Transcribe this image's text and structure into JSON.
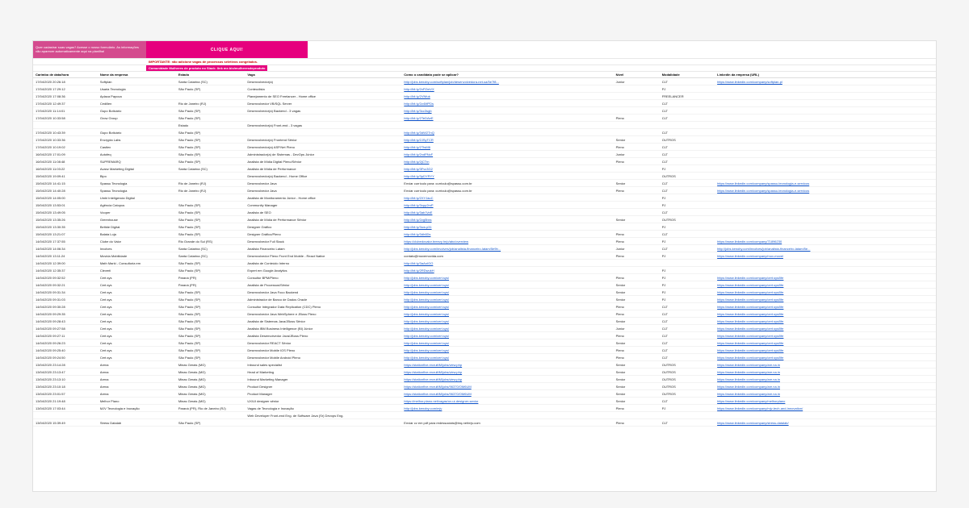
{
  "banner": {
    "left_text": "Quer cadastrar suas vagas? Acesse o nosso formulário. As informações vão aparecer automaticamente aqui na planilha!",
    "cta": "CLIQUE AQUI!",
    "warning": "IMPORTANTE: não adicione vagas de processos seletivos congelados.",
    "community": "Comunidade Mulheres de produto no Slack: link me.bio/mulheresdeproduto"
  },
  "headers": {
    "date": "Carimbo de data/hora",
    "company": "Nome da empresa",
    "state": "Estado",
    "role": "Vaga",
    "apply": "Como o candidato pode se aplicar?",
    "level": "Nível",
    "modality": "Modalidade",
    "linkedin": "Linkedin da empresa (URL)"
  },
  "rows": [
    {
      "d": "17/04/2020 20:26:18",
      "c": "Softplan",
      "s": "Santa Catarina (SC)",
      "r": "Desenvolvedor(a)",
      "a": "http://jobs.kenoby.com/softplan/job/desenvolvedora-net-sa/5e7f8...",
      "n": "Junior",
      "m": "CLT",
      "l": "https://www.linkedin.com/company/softplan-pl"
    },
    {
      "d": "17/04/2020 17:29:12",
      "c": "Usaria Tecnologia",
      "s": "São Paulo (SP)",
      "r": "Conteudista",
      "a": "http://bit.ly/2xPZmVX",
      "n": "",
      "m": "PJ",
      "l": ""
    },
    {
      "d": "17/04/2020 17:08:36",
      "c": "Aplaca Papoca",
      "s": "",
      "r": "Planejamento de SEO Freelancer - Home office",
      "a": "http://bit.ly/2VNfuk",
      "n": "",
      "m": "FREELANCER",
      "l": ""
    },
    {
      "d": "17/04/2020 12:49:37",
      "c": "Cedillen",
      "s": "Rio de Janeiro (RJ)",
      "r": "Desenvolvedor VB/SQL Server",
      "a": "http://bit.ly/2z4MPDs",
      "n": "",
      "m": "CLT",
      "l": ""
    },
    {
      "d": "17/04/2020 11:14:01",
      "c": "Gupo Boticário",
      "s": "São Paulo (SP)",
      "r": "Desenvolvedor(a) Backend - 3 vagas",
      "a": "http://bit.ly/3cc3sgb",
      "n": "",
      "m": "CLT",
      "l": ""
    },
    {
      "d": "17/04/2020 10:33:58",
      "c": "Grow Group",
      "s": "São Paulo (SP)",
      "r": "",
      "a": "http://bit.ly/2TeDAeE",
      "n": "Pleno",
      "m": "CLT",
      "l": ""
    },
    {
      "d": "",
      "c": "",
      "s": "Estado",
      "r": "Desenvolvedor(a) Front-end - 3 vagas",
      "a": "",
      "n": "",
      "m": "",
      "l": ""
    },
    {
      "d": "17/04/2020 10:43:39",
      "c": "Gupo Boticário",
      "s": "São Paulo (SP)",
      "r": "",
      "a": "http://bit.ly/3dW2TnQ",
      "n": "",
      "m": "CLT",
      "l": ""
    },
    {
      "d": "17/04/2020 10:33:36",
      "c": "Encrypta Labs",
      "s": "São Paulo (SP)",
      "r": "Desenvolvedor(a) Frontend Sênior",
      "a": "http://bit.ly/2JSyTCR",
      "n": "Senior",
      "m": "OUTROS",
      "l": ""
    },
    {
      "d": "17/04/2020 10:19:02",
      "c": "Castlex",
      "s": "São Paulo (SP)",
      "r": "Desenvolvedor(a) ASP.Net Pleno",
      "a": "http://bit.ly/2TtsM6",
      "n": "Pleno",
      "m": "CLT",
      "l": ""
    },
    {
      "d": "16/04/2020 17:01:09",
      "c": "Autofeq",
      "s": "São Paulo (SP)",
      "r": "Administrador(a) de Sistemas - DevOps Júnior",
      "a": "http://bit.ly/2xdPNcF",
      "n": "Junior",
      "m": "CLT",
      "l": ""
    },
    {
      "d": "16/04/2020 11:08:48",
      "c": "SUPREMARQ",
      "s": "São Paulo (SP)",
      "r": "Analista de Mídia Digital Pleno/Sênior",
      "a": "http://bit.ly/2jCTrn",
      "n": "Pleno",
      "m": "CLT",
      "l": ""
    },
    {
      "d": "16/04/2020 11:03:22",
      "c": "Avanz Marketing Digital",
      "s": "Santa Catarina (SC)",
      "r": "Analista de Mídia de Performance",
      "a": "http://bit.ly/3Fvc3G2",
      "n": "",
      "m": "PJ",
      "l": ""
    },
    {
      "d": "15/04/2020 19:09:41",
      "c": "Bipo",
      "s": "",
      "r": "Desenvolvedor(a) Backend - Home Office",
      "a": "http://bit.ly/3pDYRYY",
      "n": "",
      "m": "OUTROS",
      "l": ""
    },
    {
      "d": "15/04/2020 14:41:15",
      "c": "Spassu Tecnologia",
      "s": "Rio de Janeiro (RJ)",
      "r": "Desenvolvedor Java",
      "a": "Enviar currículo para: curriculo@spassu.com.br",
      "n": "Senior",
      "m": "CLT",
      "l": "https://www.linkedin.com/company/spassu-tecnologia-e-servicos"
    },
    {
      "d": "15/04/2020 14:40:28",
      "c": "Spassu Tecnologia",
      "s": "Rio de Janeiro (RJ)",
      "r": "Desenvolvedor Java",
      "a": "Enviar currículo para: curriculo@spassu.com.br",
      "n": "Pleno",
      "m": "CLT",
      "l": "https://www.linkedin.com/company/spassu-tecnologia-e-servicos"
    },
    {
      "d": "15/04/2020 14:05:00",
      "c": "Umbi Inteligencia Digital",
      "s": "",
      "r": "Analista de Monitoramento Júnior - Home office",
      "a": "http://bit.ly/2XYJauC",
      "n": "",
      "m": "PJ",
      "l": ""
    },
    {
      "d": "15/04/2020 13:53:01",
      "c": "Agência Catopus",
      "s": "São Paulo (SP)",
      "r": "Community Manager",
      "a": "http://bit.ly/3xpp2mP",
      "n": "",
      "m": "PJ",
      "l": ""
    },
    {
      "d": "15/04/2020 13:49:05",
      "c": "Vooper",
      "s": "São Paulo (SP)",
      "r": "Analista de SEO",
      "a": "http://bit.ly/3ab7vbE",
      "n": "",
      "m": "CLT",
      "l": ""
    },
    {
      "d": "15/04/2020 13:35:26",
      "c": "Greenhouse",
      "s": "São Paulo (SP)",
      "r": "Analista de Mídia de Performance Sênior",
      "a": "http://bit.ly/2zg5bxs",
      "n": "Senior",
      "m": "OUTROS",
      "l": ""
    },
    {
      "d": "15/04/2020 13:30:35",
      "c": "Beltide Digital",
      "s": "São Paulo (SP)",
      "r": "Designer Gráfico",
      "a": "http://bit.ly/3uw.p31",
      "n": "",
      "m": "PJ",
      "l": ""
    },
    {
      "d": "15/04/2020 13:21:07",
      "c": "Balata Loja",
      "s": "São Paulo (SP)",
      "r": "Designer Gráfico/Pleno",
      "a": "http://bit.ly/3dh6Ds",
      "n": "Pleno",
      "m": "CLT",
      "l": ""
    },
    {
      "d": "14/04/2020 17:37:55",
      "c": "Clube do Valor",
      "s": "Rio Grande do Sul (RS)",
      "r": "Desenvolvedor Full Stack",
      "a": "https://clubedovalor.breezy.hr/p/abc/overview",
      "n": "Pleno",
      "m": "PJ",
      "l": "https://www.linkedin.com/company/71896230"
    },
    {
      "d": "14/04/2020 14:06:34",
      "c": "Involves",
      "s": "Santa Catarina (SC)",
      "r": "Analista Financeiro Latam",
      "a": "http://jobs.kenoby.com/involves/job/analista-financeiro-latam/5e9b...",
      "n": "Junior",
      "m": "CLT",
      "l": "http://jobs.kenoby.com/involves/job/analista-financeiro-latam/5e..."
    },
    {
      "d": "14/04/2020 13:11:24",
      "c": "Movida Mobilidade",
      "s": "Santa Catarina (SC)",
      "r": "Desenvolvedor Pleno Front End Mobile - React Native",
      "a": "contato@movemovida.com",
      "n": "Pleno",
      "m": "PJ",
      "l": "https://www.linkedin.com/company/mov-movel"
    },
    {
      "d": "14/04/2020 12:39:00",
      "c": "Math Marki - Consultoria em",
      "s": "São Paulo (SP)",
      "r": "Analista de Conteúdo Interno",
      "a": "http://bit.ly/3aAoIGO",
      "n": "",
      "m": "",
      "l": ""
    },
    {
      "d": "14/04/2020 12:35:37",
      "c": "Cleverii",
      "s": "São Paulo (SP)",
      "r": "Expert em Google Analytics",
      "a": "http://bit.ly/2RDwukH",
      "n": "",
      "m": "PJ",
      "l": ""
    },
    {
      "d": "14/04/2020 09:32:52",
      "c": "Cert.sys",
      "s": "Paraná (PR)",
      "r": "Consultor BPM/Pleno",
      "a": "http://jobs.kenoby.com/cert.sys/",
      "n": "Pleno",
      "m": "PJ",
      "l": "https://www.linkedin.com/company/cert.sys/life"
    },
    {
      "d": "14/04/2020 09:32:21",
      "c": "Cert.sys",
      "s": "Paraná (PR)",
      "r": "Analista de Processos/Sênior",
      "a": "http://jobs.kenoby.com/cert.sys/",
      "n": "Senior",
      "m": "PJ",
      "l": "https://www.linkedin.com/company/cert.sys/life"
    },
    {
      "d": "14/04/2020 09:31:34",
      "c": "Cert.sys",
      "s": "São Paulo (SP)",
      "r": "Desenvolvedor Java Foco Backend",
      "a": "http://jobs.kenoby.com/cert.sys/",
      "n": "Senior",
      "m": "PJ",
      "l": "https://www.linkedin.com/company/cert.sys/life"
    },
    {
      "d": "14/04/2020 09:31:03",
      "c": "Cert.sys",
      "s": "São Paulo (SP)",
      "r": "Administrador de Banco de Dados Oracle",
      "a": "http://jobs.kenoby.com/cert.sys/",
      "n": "Senior",
      "m": "PJ",
      "l": "https://www.linkedin.com/company/cert.sys/life"
    },
    {
      "d": "14/04/2020 09:30:28",
      "c": "Cert.sys",
      "s": "São Paulo (SP)",
      "r": "Consultor Integrador Data Replication (CDC) Pleno",
      "a": "http://jobs.kenoby.com/cert.sys/",
      "n": "Pleno",
      "m": "CLT",
      "l": "https://www.linkedin.com/company/cert.sys/life"
    },
    {
      "d": "14/04/2020 09:29:35",
      "c": "Cert.sys",
      "s": "São Paulo (SP)",
      "r": "Desenvolvedor Java WebSphere e JBoss Pleno",
      "a": "http://jobs.kenoby.com/cert.sys/",
      "n": "Pleno",
      "m": "CLT",
      "l": "https://www.linkedin.com/company/cert.sys/life"
    },
    {
      "d": "14/04/2020 09:28:43",
      "c": "Cert.sys",
      "s": "São Paulo (SP)",
      "r": "Analista de Sistemas Java/JBoss Sênior",
      "a": "http://jobs.kenoby.com/cert.sys/",
      "n": "Senior",
      "m": "CLT",
      "l": "https://www.linkedin.com/company/cert.sys/life"
    },
    {
      "d": "14/04/2020 09:27:58",
      "c": "Cert.sys",
      "s": "São Paulo (SP)",
      "r": "Analista IBM Business Intelligence (BI) Júnior",
      "a": "http://jobs.kenoby.com/cert.sys/",
      "n": "Junior",
      "m": "CLT",
      "l": "https://www.linkedin.com/company/cert.sys/life"
    },
    {
      "d": "14/04/2020 09:27:11",
      "c": "Cert.sys",
      "s": "São Paulo (SP)",
      "r": "Analista Desenvolvedor Java/JBoss Pleno",
      "a": "http://jobs.kenoby.com/cert.sys/",
      "n": "Pleno",
      "m": "CLT",
      "l": "https://www.linkedin.com/company/cert.sys/life"
    },
    {
      "d": "14/04/2020 09:26:23",
      "c": "Cert.sys",
      "s": "São Paulo (SP)",
      "r": "Desenvolvedor REACT Sênior",
      "a": "http://jobs.kenoby.com/cert.sys/",
      "n": "Senior",
      "m": "CLT",
      "l": "https://www.linkedin.com/company/cert.sys/life"
    },
    {
      "d": "14/04/2020 09:25:40",
      "c": "Cert.sys",
      "s": "São Paulo (SP)",
      "r": "Desenvolvedor Mobile IOS Pleno",
      "a": "http://jobs.kenoby.com/cert.sys/",
      "n": "Pleno",
      "m": "CLT",
      "l": "https://www.linkedin.com/company/cert.sys/life"
    },
    {
      "d": "14/04/2020 09:24:50",
      "c": "Cert.sys",
      "s": "São Paulo (SP)",
      "r": "Desenvolvedor Mobile Android Pleno",
      "a": "http://jobs.kenoby.com/cert.sys/",
      "n": "Pleno",
      "m": "CLT",
      "l": "https://www.linkedin.com/company/cert.sys/life"
    },
    {
      "d": "13/04/2020 23:14:28",
      "c": "Arena",
      "s": "Minas Gerais (MG)",
      "r": "Inbound sales specialist",
      "a": "https://stationfive.recruitIM/jobs/view.php",
      "n": "Senior",
      "m": "OUTROS",
      "l": "https://www.linkedin.com/company/are.na.in"
    },
    {
      "d": "13/04/2020 23:13:47",
      "c": "Arena",
      "s": "Minas Gerais (MG)",
      "r": "Head of Marketing",
      "a": "https://stationfive.recruitIM/jobs/view.php",
      "n": "Senior",
      "m": "OUTROS",
      "l": "https://www.linkedin.com/company/are.na.in"
    },
    {
      "d": "13/04/2020 23:13:10",
      "c": "Arena",
      "s": "Minas Gerais (MG)",
      "r": "Inbound Marketing Manager",
      "a": "https://stationfive.recruitIM/jobs/view.php",
      "n": "Senior",
      "m": "OUTROS",
      "l": "https://www.linkedin.com/company/are.na.in"
    },
    {
      "d": "13/04/2020 23:10:18",
      "c": "Arena",
      "s": "Minas Gerais (MG)",
      "r": "Product Designer",
      "a": "https://stationfive.recruitIM/jobs/96370/OM6UM",
      "n": "Senior",
      "m": "OUTROS",
      "l": "https://www.linkedin.com/company/are.na.in"
    },
    {
      "d": "13/04/2020 23:01:57",
      "c": "Arena",
      "s": "Minas Gerais (MG)",
      "r": "Product Manager",
      "a": "https://stationfive.recruitIM/jobs/96370/OM6UM",
      "n": "Senior",
      "m": "OUTROS",
      "l": "https://www.linkedin.com/company/are.na.in"
    },
    {
      "d": "13/04/2020 21:19:48",
      "c": "Melhor Plano",
      "s": "Minas Gerais (MG)",
      "r": "UX/UI designer sênior",
      "a": "https://melhor.plano.net/vagas/ux-ui-designer-senior",
      "n": "Senior",
      "m": "CLT",
      "l": "https://www.linkedin.com/company/melhorplano"
    },
    {
      "d": "13/04/2020 17:03:44",
      "c": "MJV Tecnologia e Inovação",
      "s": "Paraná (PR), Rio de Janeiro (RJ)",
      "r": "Vagas de Tecnologia e Inovação",
      "a": "http://jobs.kenoby.com/mjv",
      "n": "Pleno",
      "m": "PJ",
      "l": "https://www.linkedin.com/company/mjv-tech-and-innovation/"
    },
    {
      "d": "",
      "c": "",
      "s": "",
      "r": "Web Developer Front-end\nEng. de Software Java (Sr)\nDevops Eng.",
      "a": "",
      "n": "",
      "m": "",
      "l": ""
    },
    {
      "d": "13/04/2020 15:39:49",
      "c": "Stress Datalab",
      "s": "São Paulo (SP)",
      "r": "",
      "a": "Enviar cv em pdf para redessociais@brq.net/mjv.com",
      "n": "Pleno",
      "m": "CLT",
      "l": "https://www.linkedin.com/company/stress-datalab/"
    }
  ]
}
